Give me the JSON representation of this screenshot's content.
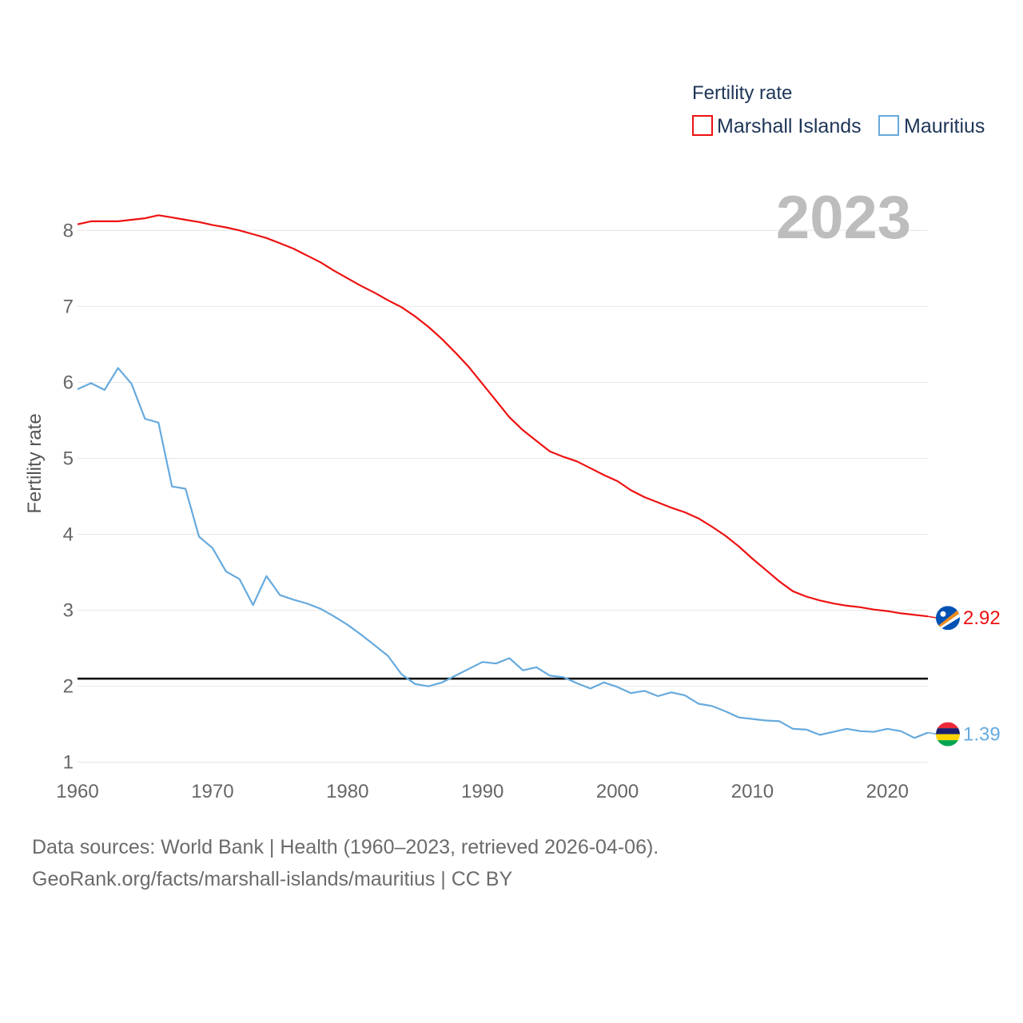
{
  "chart_data": {
    "type": "line",
    "legend_title": "Fertility rate",
    "legend_position": "top-right",
    "ylabel": "Fertility rate",
    "xlabel": "",
    "watermark_year": "2023",
    "xlim": [
      1960,
      2023
    ],
    "ylim": [
      0.85,
      8.55
    ],
    "x_ticks": [
      1960,
      1970,
      1980,
      1990,
      2000,
      2010,
      2020
    ],
    "y_ticks": [
      1,
      2,
      3,
      4,
      5,
      6,
      7,
      8
    ],
    "grid": true,
    "reference_line": {
      "value": 2.1,
      "color": "#000000"
    },
    "x": [
      1960,
      1961,
      1962,
      1963,
      1964,
      1965,
      1966,
      1967,
      1968,
      1969,
      1970,
      1971,
      1972,
      1973,
      1974,
      1975,
      1976,
      1977,
      1978,
      1979,
      1980,
      1981,
      1982,
      1983,
      1984,
      1985,
      1986,
      1987,
      1988,
      1989,
      1990,
      1991,
      1992,
      1993,
      1994,
      1995,
      1996,
      1997,
      1998,
      1999,
      2000,
      2001,
      2002,
      2003,
      2004,
      2005,
      2006,
      2007,
      2008,
      2009,
      2010,
      2011,
      2012,
      2013,
      2014,
      2015,
      2016,
      2017,
      2018,
      2019,
      2020,
      2021,
      2022,
      2023
    ],
    "series": [
      {
        "name": "Marshall Islands",
        "color": "#ee1111",
        "flag": "marshall-islands-flag",
        "end_label": "2.92",
        "values": [
          8.08,
          8.12,
          8.12,
          8.12,
          8.14,
          8.16,
          8.2,
          8.17,
          8.14,
          8.11,
          8.07,
          8.04,
          8.0,
          7.95,
          7.9,
          7.83,
          7.76,
          7.67,
          7.58,
          7.47,
          7.37,
          7.27,
          7.18,
          7.08,
          6.99,
          6.87,
          6.73,
          6.57,
          6.39,
          6.2,
          5.98,
          5.76,
          5.54,
          5.37,
          5.23,
          5.09,
          5.02,
          4.96,
          4.87,
          4.78,
          4.7,
          4.58,
          4.49,
          4.42,
          4.35,
          4.29,
          4.21,
          4.1,
          3.98,
          3.84,
          3.68,
          3.53,
          3.38,
          3.25,
          3.18,
          3.13,
          3.09,
          3.06,
          3.04,
          3.01,
          2.99,
          2.96,
          2.94,
          2.92
        ]
      },
      {
        "name": "Mauritius",
        "color": "#66aadd",
        "flag": "mauritius-flag",
        "end_label": "1.39",
        "values": [
          5.91,
          5.99,
          5.9,
          6.19,
          5.98,
          5.52,
          5.47,
          4.63,
          4.6,
          3.97,
          3.82,
          3.51,
          3.41,
          3.07,
          3.45,
          3.2,
          3.14,
          3.09,
          3.02,
          2.92,
          2.81,
          2.68,
          2.54,
          2.4,
          2.16,
          2.03,
          2.0,
          2.05,
          2.14,
          2.23,
          2.32,
          2.3,
          2.37,
          2.21,
          2.25,
          2.14,
          2.12,
          2.04,
          1.97,
          2.05,
          1.99,
          1.91,
          1.94,
          1.87,
          1.92,
          1.88,
          1.77,
          1.74,
          1.67,
          1.59,
          1.57,
          1.55,
          1.54,
          1.44,
          1.43,
          1.36,
          1.4,
          1.44,
          1.41,
          1.4,
          1.44,
          1.41,
          1.32,
          1.39
        ]
      }
    ]
  },
  "footer": {
    "line1": "Data sources: World Bank | Health (1960–2023, retrieved 2026-04-06).",
    "line2": "GeoRank.org/facts/marshall-islands/mauritius | CC BY"
  }
}
